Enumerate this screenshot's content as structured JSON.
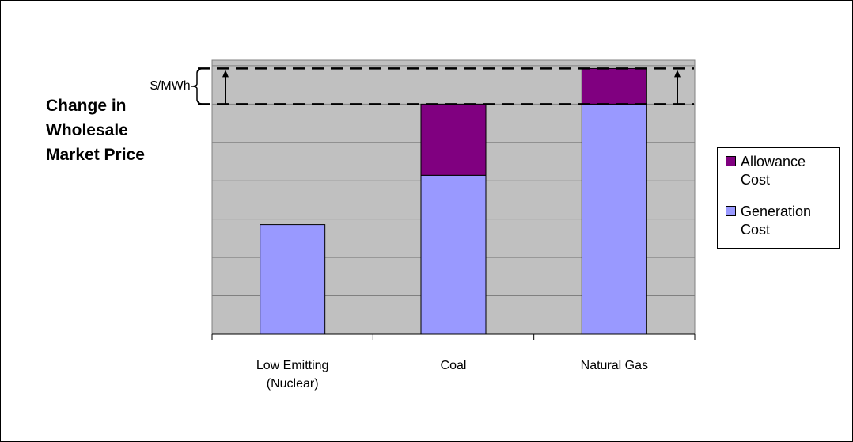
{
  "chart_data": {
    "type": "bar",
    "stacked": true,
    "title": "",
    "ylabel": "$/MWh",
    "xlabel": "",
    "ylim": [
      0,
      100
    ],
    "grid": true,
    "categories": [
      "Low Emitting\n(Nuclear)",
      "Coal",
      "Natural Gas"
    ],
    "series": [
      {
        "name": "Generation Cost",
        "values": [
          40,
          58,
          84
        ],
        "color": "#9999ff"
      },
      {
        "name": "Allowance Cost",
        "values": [
          0,
          26,
          13
        ],
        "color": "#800080"
      }
    ],
    "legend": {
      "position": "right"
    },
    "annotations": [
      {
        "text": "Change in\nWholesale\nMarket Price",
        "type": "price-change-bracket",
        "between": [
          84,
          97
        ]
      }
    ]
  },
  "colors": {
    "plot_background": "#c0c0c0",
    "gridline": "#808080"
  }
}
